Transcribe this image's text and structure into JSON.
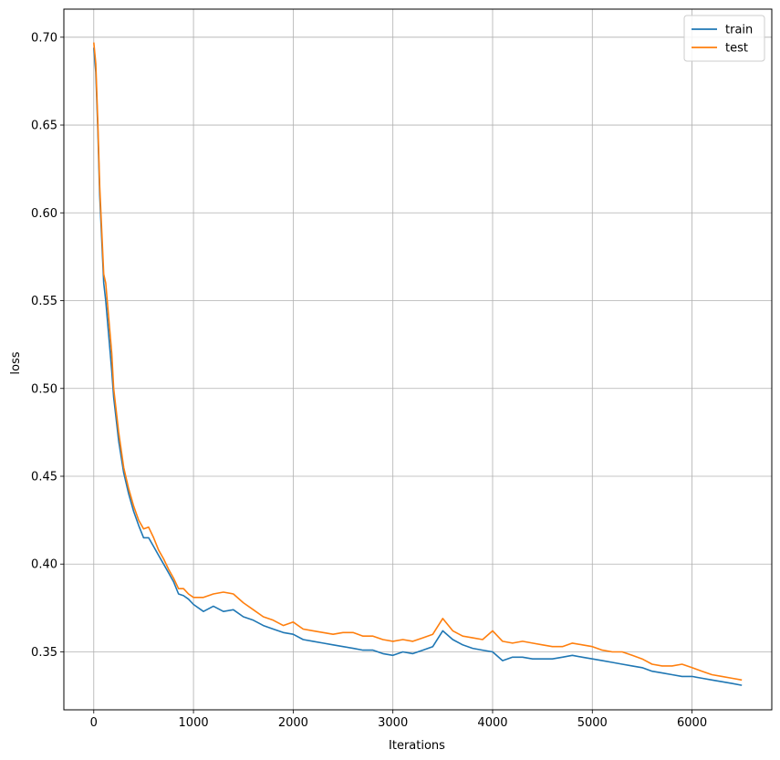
{
  "chart_data": {
    "type": "line",
    "title": "",
    "xlabel": "Iterations",
    "ylabel": "loss",
    "xlim": [
      -300,
      6800
    ],
    "ylim": [
      0.317,
      0.716
    ],
    "xticks": [
      0,
      1000,
      2000,
      3000,
      4000,
      5000,
      6000
    ],
    "xtick_labels": [
      "0",
      "1000",
      "2000",
      "3000",
      "4000",
      "5000",
      "6000"
    ],
    "yticks": [
      0.35,
      0.4,
      0.45,
      0.5,
      0.55,
      0.6,
      0.65,
      0.7
    ],
    "ytick_labels": [
      "0.35",
      "0.40",
      "0.45",
      "0.50",
      "0.55",
      "0.60",
      "0.65",
      "0.70"
    ],
    "grid": true,
    "legend_position": "top-right",
    "series": [
      {
        "name": "train",
        "color": "#1f77b4",
        "x": [
          0,
          20,
          40,
          60,
          80,
          100,
          120,
          150,
          180,
          200,
          250,
          300,
          350,
          400,
          450,
          500,
          550,
          600,
          650,
          700,
          750,
          800,
          850,
          900,
          950,
          1000,
          1100,
          1200,
          1300,
          1400,
          1500,
          1600,
          1700,
          1800,
          1900,
          2000,
          2100,
          2200,
          2300,
          2400,
          2500,
          2600,
          2700,
          2800,
          2900,
          3000,
          3100,
          3200,
          3300,
          3400,
          3500,
          3600,
          3700,
          3800,
          3900,
          4000,
          4100,
          4200,
          4300,
          4400,
          4500,
          4600,
          4700,
          4800,
          4900,
          5000,
          5100,
          5200,
          5300,
          5400,
          5500,
          5600,
          5700,
          5800,
          5900,
          6000,
          6100,
          6200,
          6300,
          6400,
          6500
        ],
        "y": [
          0.694,
          0.68,
          0.648,
          0.61,
          0.585,
          0.56,
          0.55,
          0.53,
          0.51,
          0.495,
          0.47,
          0.452,
          0.44,
          0.43,
          0.422,
          0.415,
          0.415,
          0.41,
          0.405,
          0.4,
          0.395,
          0.39,
          0.383,
          0.382,
          0.38,
          0.377,
          0.373,
          0.376,
          0.373,
          0.374,
          0.37,
          0.368,
          0.365,
          0.363,
          0.361,
          0.36,
          0.357,
          0.356,
          0.355,
          0.354,
          0.353,
          0.352,
          0.351,
          0.351,
          0.349,
          0.348,
          0.35,
          0.349,
          0.351,
          0.353,
          0.362,
          0.357,
          0.354,
          0.352,
          0.351,
          0.35,
          0.345,
          0.347,
          0.347,
          0.346,
          0.346,
          0.346,
          0.347,
          0.348,
          0.347,
          0.346,
          0.345,
          0.344,
          0.343,
          0.342,
          0.341,
          0.339,
          0.338,
          0.337,
          0.336,
          0.336,
          0.335,
          0.334,
          0.333,
          0.332,
          0.331
        ]
      },
      {
        "name": "test",
        "color": "#ff7f0e",
        "x": [
          0,
          20,
          40,
          60,
          80,
          100,
          120,
          150,
          180,
          200,
          250,
          300,
          350,
          400,
          450,
          500,
          550,
          600,
          650,
          700,
          750,
          800,
          850,
          900,
          950,
          1000,
          1100,
          1200,
          1300,
          1400,
          1500,
          1600,
          1700,
          1800,
          1900,
          2000,
          2100,
          2200,
          2300,
          2400,
          2500,
          2600,
          2700,
          2800,
          2900,
          3000,
          3100,
          3200,
          3300,
          3400,
          3500,
          3600,
          3700,
          3800,
          3900,
          4000,
          4100,
          4200,
          4300,
          4400,
          4500,
          4600,
          4700,
          4800,
          4900,
          5000,
          5100,
          5200,
          5300,
          5400,
          5500,
          5600,
          5700,
          5800,
          5900,
          6000,
          6100,
          6200,
          6300,
          6400,
          6500
        ],
        "y": [
          0.697,
          0.685,
          0.652,
          0.615,
          0.59,
          0.565,
          0.56,
          0.54,
          0.52,
          0.5,
          0.475,
          0.455,
          0.443,
          0.433,
          0.425,
          0.42,
          0.421,
          0.415,
          0.408,
          0.403,
          0.397,
          0.392,
          0.386,
          0.386,
          0.383,
          0.381,
          0.381,
          0.383,
          0.384,
          0.383,
          0.378,
          0.374,
          0.37,
          0.368,
          0.365,
          0.367,
          0.363,
          0.362,
          0.361,
          0.36,
          0.361,
          0.361,
          0.359,
          0.359,
          0.357,
          0.356,
          0.357,
          0.356,
          0.358,
          0.36,
          0.369,
          0.362,
          0.359,
          0.358,
          0.357,
          0.362,
          0.356,
          0.355,
          0.356,
          0.355,
          0.354,
          0.353,
          0.353,
          0.355,
          0.354,
          0.353,
          0.351,
          0.35,
          0.35,
          0.348,
          0.346,
          0.343,
          0.342,
          0.342,
          0.343,
          0.341,
          0.339,
          0.337,
          0.336,
          0.335,
          0.334
        ]
      }
    ]
  }
}
